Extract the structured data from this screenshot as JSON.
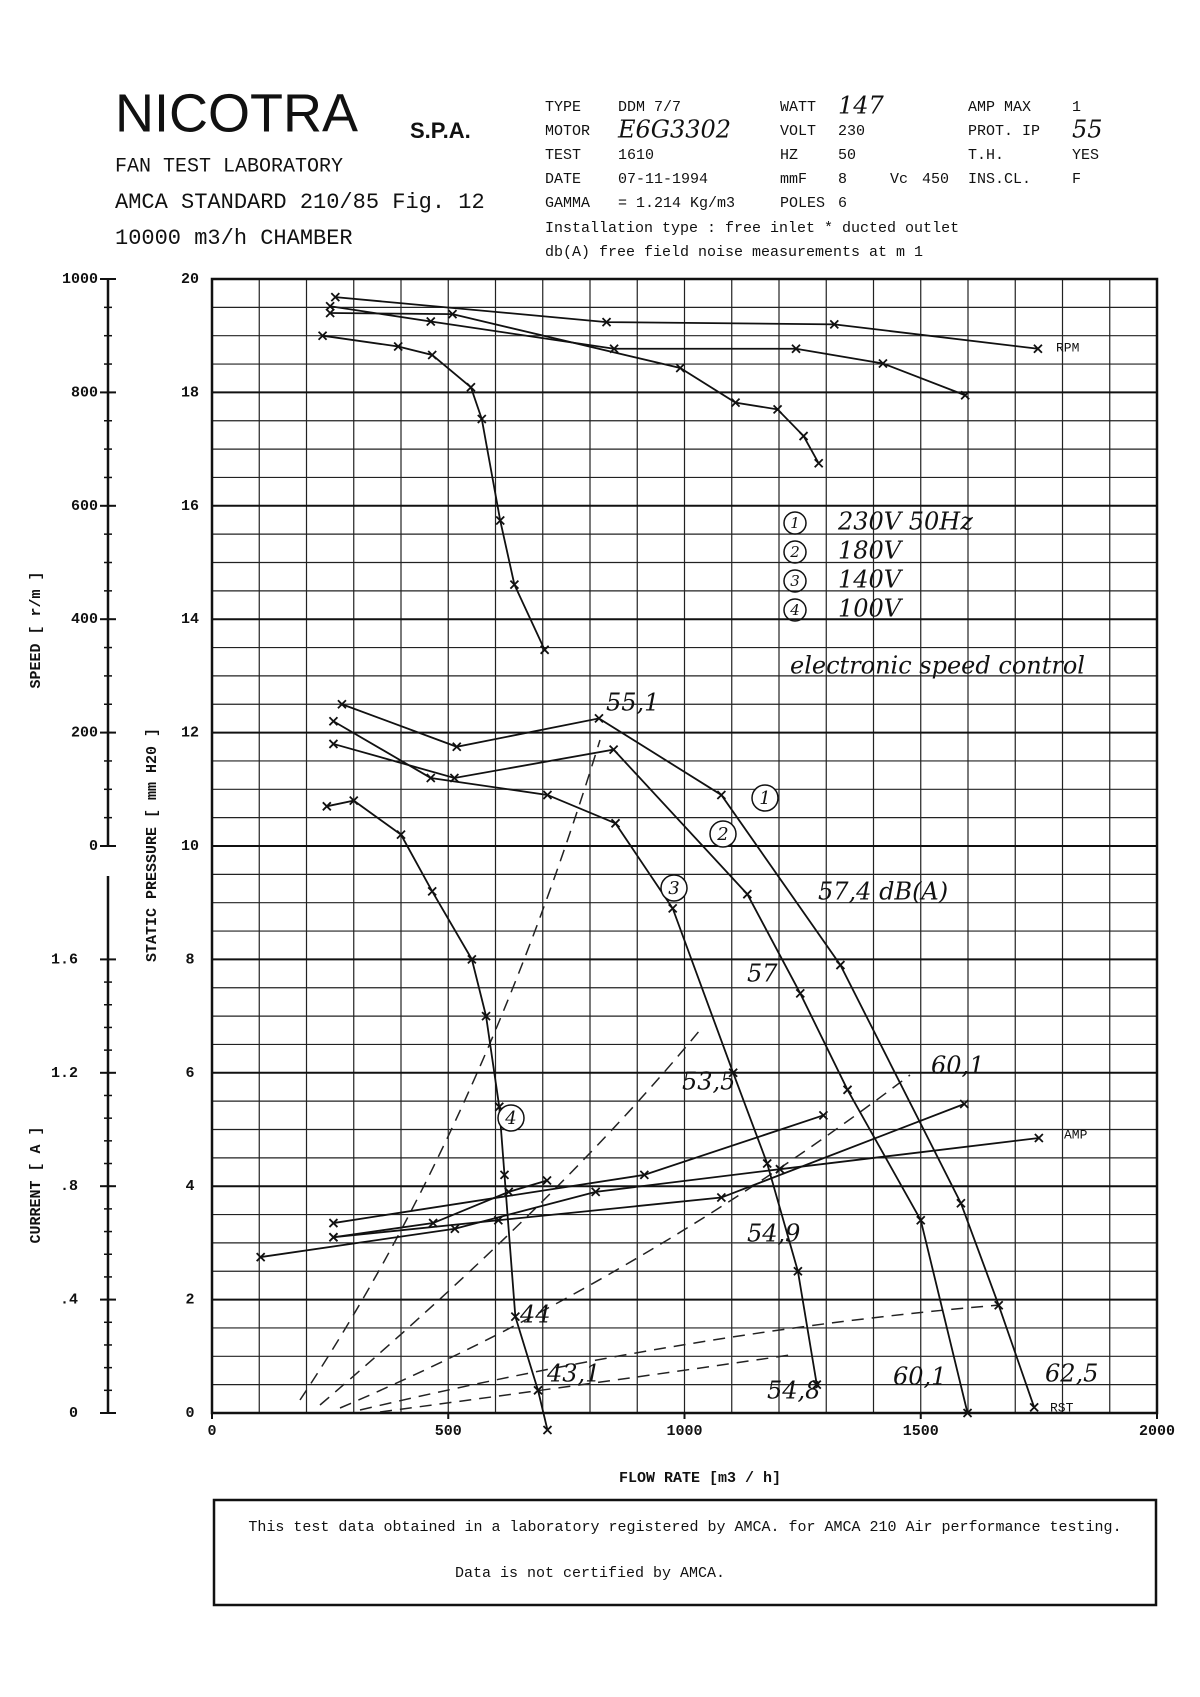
{
  "header": {
    "company": "NICOTRA",
    "company_suffix": "S.P.A.",
    "lab": "FAN TEST LABORATORY",
    "standard": "AMCA STANDARD 210/85 Fig. 12",
    "chamber": "10000 m3/h  CHAMBER",
    "fields": [
      [
        "TYPE",
        "DDM 7/7"
      ],
      [
        "MOTOR",
        "E6G3302"
      ],
      [
        "TEST",
        "1610"
      ],
      [
        "DATE",
        "07-11-1994"
      ],
      [
        "GAMMA",
        "= 1.214 Kg/m3"
      ],
      [
        "WATT",
        "147"
      ],
      [
        "VOLT",
        "230"
      ],
      [
        "HZ",
        "50"
      ],
      [
        "mmF",
        "8"
      ],
      [
        "Vc",
        "450"
      ],
      [
        "POLES",
        "6"
      ],
      [
        "AMP MAX",
        "1"
      ],
      [
        "PROT. IP",
        "55"
      ],
      [
        "T.H.",
        "YES"
      ],
      [
        "INS.CL.",
        "F"
      ]
    ],
    "installation": "Installation type :  free inlet * ducted outlet",
    "noise": "db(A)  free field noise measurements at m  1"
  },
  "chart_data": {
    "type": "line",
    "x_label": "FLOW RATE  [m3 / h]",
    "y_label": "STATIC PRESSURE  [ mm H20 ]",
    "y2_label": "SPEED  [ r/m ]",
    "y3_label": "CURRENT  [ A ]",
    "xlim": [
      0,
      2000
    ],
    "xticks": [
      0,
      500,
      1000,
      1500,
      2000
    ],
    "ylim": [
      0,
      20
    ],
    "yticks": [
      0,
      2,
      4,
      6,
      8,
      10,
      12,
      14,
      16,
      18,
      20
    ],
    "y2lim": [
      0,
      1000
    ],
    "y2ticks": [
      0,
      200,
      400,
      600,
      800,
      1000
    ],
    "y3lim": [
      0,
      2
    ],
    "y3ticks": [
      0,
      {
        "value": 0.4,
        "label": ".4"
      },
      {
        "value": 0.8,
        "label": ".8"
      },
      {
        "value": 1.2,
        "label": "1.2"
      },
      {
        "value": 1.6,
        "label": "1.6"
      }
    ],
    "grid": true,
    "color": "#111111",
    "curves": [
      {
        "label": "1",
        "name": "230V  50Hz",
        "pressure": {
          "x": [
            275,
            518,
            819,
            1078,
            1330,
            1585,
            1665,
            1740
          ],
          "values": [
            12.5,
            11.75,
            12.25,
            10.9,
            7.9,
            3.7,
            1.9,
            0.1
          ]
        },
        "speed": {
          "x": [
            261,
            835,
            1317,
            1748
          ],
          "values": [
            968,
            924,
            920,
            877
          ]
        },
        "current": {
          "x": [
            103,
            514,
            812,
            1202,
            1750
          ],
          "values": [
            0.55,
            0.65,
            0.78,
            0.86,
            0.97
          ]
        }
      },
      {
        "label": "2",
        "name": "180V",
        "pressure": {
          "x": [
            257,
            513,
            850,
            1133,
            1245,
            1345,
            1500,
            1599
          ],
          "values": [
            11.8,
            11.2,
            11.7,
            9.15,
            7.4,
            5.7,
            3.4,
            0
          ]
        },
        "speed": {
          "x": [
            250,
            463,
            851,
            1236,
            1420,
            1594
          ],
          "values": [
            952,
            925,
            877,
            877,
            851,
            795
          ]
        },
        "current": {
          "x": [
            257,
            606,
            1078,
            1592
          ],
          "values": [
            0.62,
            0.68,
            0.76,
            1.09
          ]
        }
      },
      {
        "label": "3",
        "name": "140V",
        "pressure": {
          "x": [
            257,
            463,
            710,
            854,
            975,
            1103,
            1175,
            1240,
            1280
          ],
          "values": [
            12.2,
            11.2,
            10.9,
            10.4,
            8.9,
            6.0,
            4.4,
            2.5,
            0.5
          ]
        },
        "speed": {
          "x": [
            250,
            509,
            991,
            1108,
            1197,
            1252,
            1284
          ],
          "values": [
            940,
            938,
            843,
            782,
            770,
            723,
            675
          ]
        },
        "current": {
          "x": [
            257,
            915,
            1294
          ],
          "values": [
            0.67,
            0.84,
            1.05
          ]
        }
      },
      {
        "label": "4",
        "name": "100V",
        "pressure": {
          "x": [
            243,
            300,
            400,
            466,
            550,
            580,
            608,
            619,
            642,
            690,
            710
          ],
          "values": [
            10.7,
            10.8,
            10.2,
            9.2,
            8.0,
            7.0,
            5.4,
            4.2,
            1.7,
            0.4,
            -0.3
          ]
        },
        "speed": {
          "x": [
            234,
            394,
            466,
            548,
            571,
            610,
            640,
            704
          ],
          "values": [
            900,
            881,
            866,
            809,
            753,
            574,
            461,
            346
          ]
        },
        "current": {
          "x": [
            257,
            468,
            628,
            709
          ],
          "values": [
            0.62,
            0.67,
            0.78,
            0.82
          ]
        }
      }
    ],
    "legend_note": "electronic speed control",
    "end_labels": [
      "RPM",
      "AMP",
      "RST"
    ],
    "noise_labels": [
      "55,1",
      "57,4 dB(A)",
      "57",
      "53,5",
      "60,1",
      "54,9",
      "44",
      "43,1",
      "54,8",
      "60,1",
      "62,5"
    ]
  },
  "footer": {
    "line1": "This test data obtained in a laboratory registered by AMCA. for AMCA 210 Air performance testing.",
    "line2": "Data is not certified by AMCA."
  }
}
